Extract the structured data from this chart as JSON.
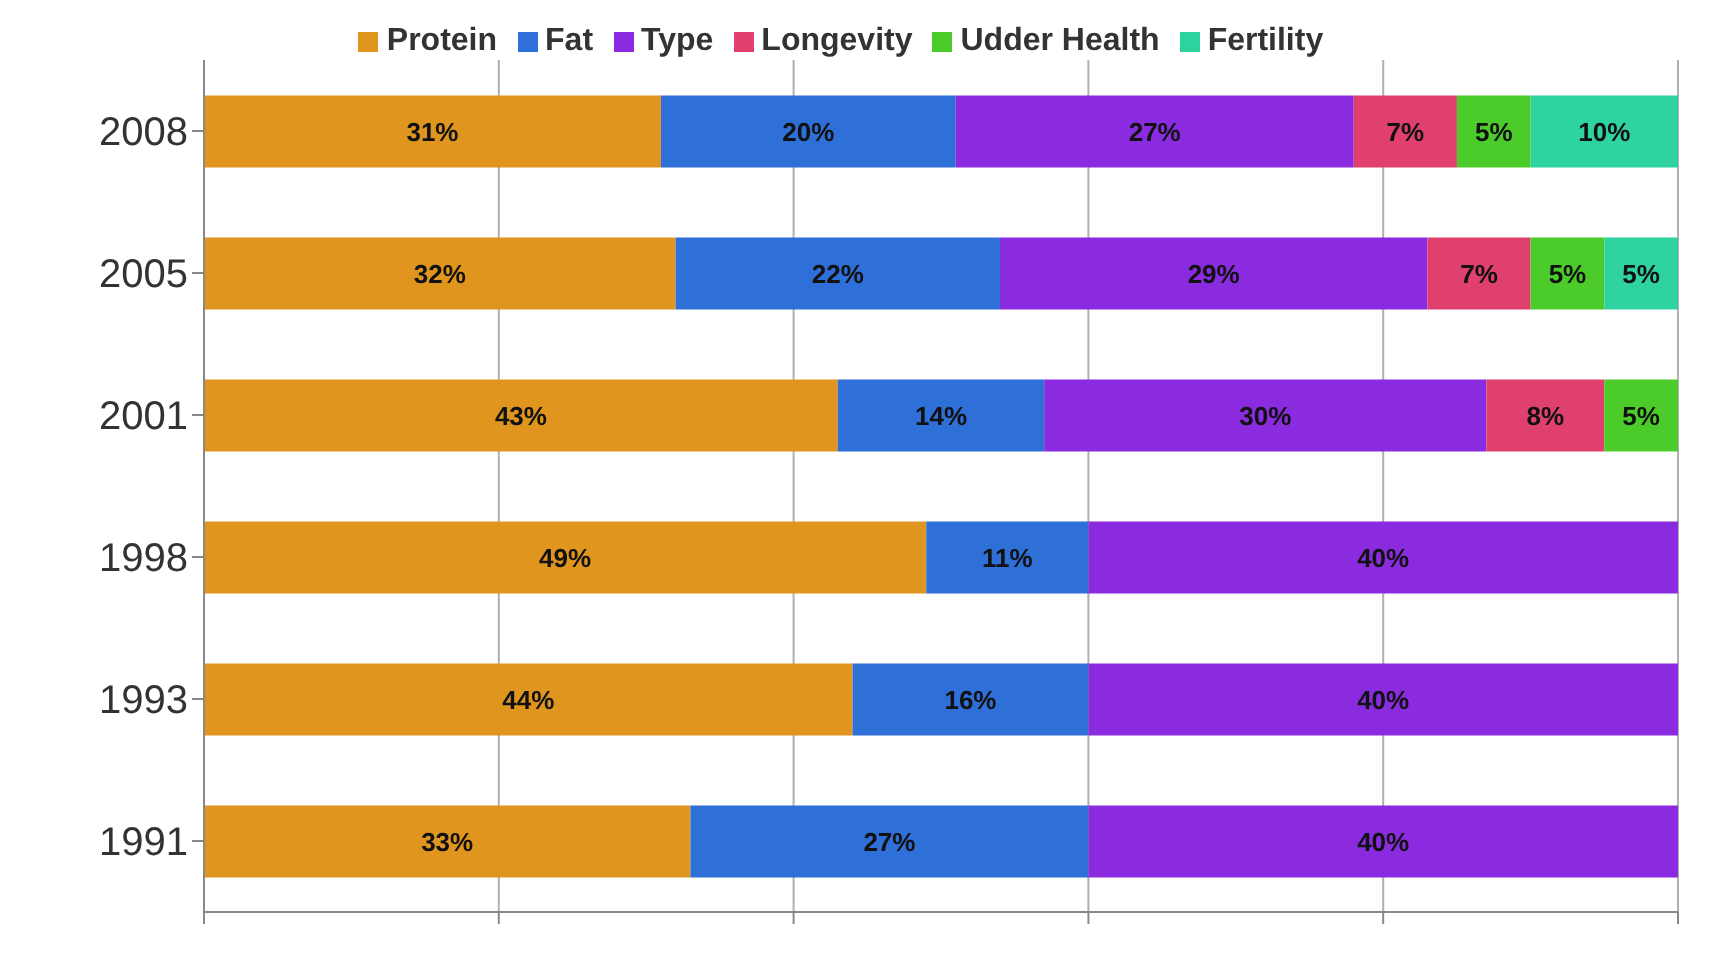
{
  "chart_data": {
    "type": "bar",
    "orientation": "horizontal",
    "stacked": true,
    "categories": [
      "2008",
      "2005",
      "2001",
      "1998",
      "1993",
      "1991"
    ],
    "series": [
      {
        "name": "Protein",
        "color": "#e0961e",
        "values": [
          31,
          32,
          43,
          49,
          44,
          33
        ],
        "value_labels": [
          "31%",
          "32%",
          "43%",
          "49%",
          "44%",
          "33%"
        ]
      },
      {
        "name": "Fat",
        "color": "#2e6fd8",
        "values": [
          20,
          22,
          14,
          11,
          16,
          27
        ],
        "value_labels": [
          "20%",
          "22%",
          "14%",
          "11%",
          "16%",
          "27%"
        ]
      },
      {
        "name": "Type",
        "color": "#8a2be0",
        "values": [
          27,
          29,
          30,
          40,
          40,
          40
        ],
        "value_labels": [
          "27%",
          "29%",
          "30%",
          "40%",
          "40%",
          "40%"
        ]
      },
      {
        "name": "Longevity",
        "color": "#e0406e",
        "values": [
          7,
          7,
          8,
          null,
          null,
          null
        ],
        "value_labels": [
          "7%",
          "7%",
          "8%",
          null,
          null,
          null
        ]
      },
      {
        "name": "Udder Health",
        "color": "#4ccc2a",
        "values": [
          5,
          5,
          5,
          null,
          null,
          null
        ],
        "value_labels": [
          "5%",
          "5%",
          "5%",
          null,
          null,
          null
        ]
      },
      {
        "name": "Fertility",
        "color": "#2ed3a0",
        "values": [
          10,
          5,
          null,
          null,
          null,
          null
        ],
        "value_labels": [
          "10%",
          "5%",
          null,
          null,
          null,
          null
        ]
      }
    ],
    "xlim": [
      0,
      100
    ],
    "tick_labels": "y",
    "grid": "x",
    "legend": "top"
  }
}
